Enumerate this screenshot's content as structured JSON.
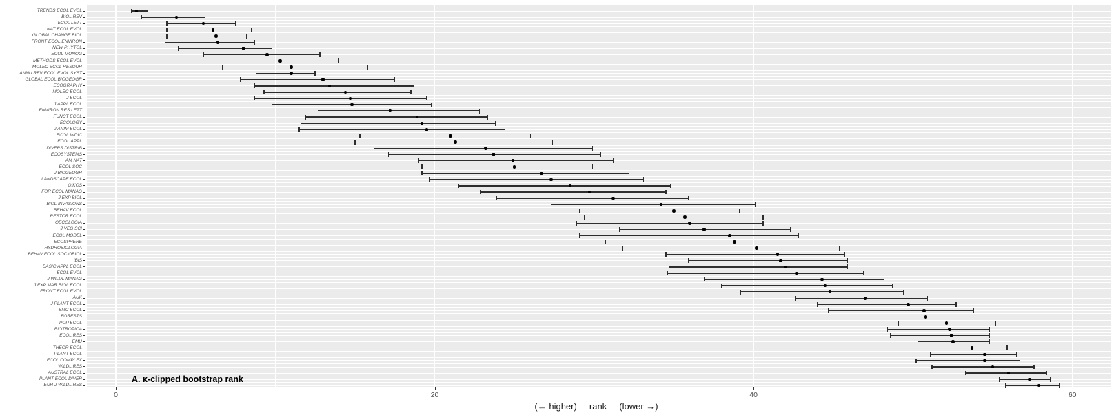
{
  "figure": {
    "panel_bg": "#EBEBEB",
    "grid_color": "#FFFFFF",
    "bar_color": "#2E2E2E",
    "point_color": "#000000",
    "axis_text_color": "#4D4D4D",
    "tick_color": "#333333",
    "annotation": "A. κ-clipped bootstrap rank",
    "xlabel_parts": [
      "(← higher)",
      "rank",
      "(lower →)"
    ]
  },
  "chart_data": {
    "type": "scatter",
    "subtype": "dot-with-horizontal-error-bars",
    "orientation": "horizontal",
    "title": "A. κ-clipped bootstrap rank",
    "xlabel": "(← higher)  rank  (lower →)",
    "ylabel": "",
    "xlim": [
      -1.8,
      62.4
    ],
    "x_ticks": [
      0,
      20,
      40,
      60
    ],
    "x_minor_ticks": [
      10,
      30,
      50
    ],
    "grid": true,
    "legend": false,
    "points": [
      {
        "label": "TRENDS ECOL EVOL",
        "lower": 1.0,
        "rank": 1.3,
        "upper": 2.0
      },
      {
        "label": "BIOL REV",
        "lower": 1.6,
        "rank": 3.8,
        "upper": 5.6
      },
      {
        "label": "ECOL LETT",
        "lower": 3.2,
        "rank": 5.5,
        "upper": 7.5
      },
      {
        "label": "NAT ECOL EVOL",
        "lower": 3.2,
        "rank": 6.1,
        "upper": 8.5
      },
      {
        "label": "GLOBAL CHANGE BIOL",
        "lower": 3.2,
        "rank": 6.3,
        "upper": 8.2
      },
      {
        "label": "FRONT ECOL ENVIRON",
        "lower": 3.1,
        "rank": 6.4,
        "upper": 8.7
      },
      {
        "label": "NEW PHYTOL",
        "lower": 3.9,
        "rank": 8.0,
        "upper": 9.8
      },
      {
        "label": "ECOL MONOG",
        "lower": 5.5,
        "rank": 9.5,
        "upper": 12.8
      },
      {
        "label": "METHODS ECOL EVOL",
        "lower": 5.6,
        "rank": 10.3,
        "upper": 14.0
      },
      {
        "label": "MOLEC ECOL RESOUR",
        "lower": 6.7,
        "rank": 11.0,
        "upper": 15.8
      },
      {
        "label": "ANNU REV ECOL EVOL SYST",
        "lower": 8.8,
        "rank": 11.0,
        "upper": 12.5
      },
      {
        "label": "GLOBAL ECOL BIOGEOGR",
        "lower": 7.8,
        "rank": 13.0,
        "upper": 17.5
      },
      {
        "label": "ECOGRAPHY",
        "lower": 8.7,
        "rank": 13.4,
        "upper": 18.7
      },
      {
        "label": "MOLEC ECOL",
        "lower": 9.3,
        "rank": 14.4,
        "upper": 18.5
      },
      {
        "label": "J ECOL",
        "lower": 8.7,
        "rank": 14.7,
        "upper": 19.5
      },
      {
        "label": "J APPL ECOL",
        "lower": 9.8,
        "rank": 14.8,
        "upper": 19.8
      },
      {
        "label": "ENVIRON RES LETT",
        "lower": 12.7,
        "rank": 17.2,
        "upper": 22.8
      },
      {
        "label": "FUNCT ECOL",
        "lower": 11.9,
        "rank": 18.9,
        "upper": 23.3
      },
      {
        "label": "ECOLOGY",
        "lower": 11.6,
        "rank": 19.2,
        "upper": 23.8
      },
      {
        "label": "J ANIM ECOL",
        "lower": 11.5,
        "rank": 19.5,
        "upper": 24.4
      },
      {
        "label": "ECOL INDIC",
        "lower": 15.3,
        "rank": 21.0,
        "upper": 26.0
      },
      {
        "label": "ECOL APPL",
        "lower": 15.0,
        "rank": 21.3,
        "upper": 27.4
      },
      {
        "label": "DIVERS DISTRIB",
        "lower": 16.2,
        "rank": 23.2,
        "upper": 29.9
      },
      {
        "label": "ECOSYSTEMS",
        "lower": 17.1,
        "rank": 23.7,
        "upper": 30.4
      },
      {
        "label": "AM NAT",
        "lower": 19.0,
        "rank": 24.9,
        "upper": 31.2
      },
      {
        "label": "ECOL SOC",
        "lower": 19.2,
        "rank": 25.0,
        "upper": 29.9
      },
      {
        "label": "J BIOGEOGR",
        "lower": 19.2,
        "rank": 26.7,
        "upper": 32.2
      },
      {
        "label": "LANDSCAPE ECOL",
        "lower": 19.7,
        "rank": 27.3,
        "upper": 33.1
      },
      {
        "label": "OIKOS",
        "lower": 21.5,
        "rank": 28.5,
        "upper": 34.8
      },
      {
        "label": "FOR ECOL MANAG",
        "lower": 22.9,
        "rank": 29.7,
        "upper": 34.5
      },
      {
        "label": "J EXP BIOL",
        "lower": 23.9,
        "rank": 31.2,
        "upper": 35.9
      },
      {
        "label": "BIOL INVASIONS",
        "lower": 27.3,
        "rank": 34.2,
        "upper": 40.1
      },
      {
        "label": "BEHAV ECOL",
        "lower": 29.1,
        "rank": 35.0,
        "upper": 39.1
      },
      {
        "label": "RESTOR ECOL",
        "lower": 29.4,
        "rank": 35.7,
        "upper": 40.6
      },
      {
        "label": "OECOLOGIA",
        "lower": 28.9,
        "rank": 36.0,
        "upper": 40.6
      },
      {
        "label": "J VEG SCI",
        "lower": 31.6,
        "rank": 36.9,
        "upper": 42.3
      },
      {
        "label": "ECOL MODEL",
        "lower": 29.1,
        "rank": 38.5,
        "upper": 42.8
      },
      {
        "label": "ECOSPHERE",
        "lower": 30.7,
        "rank": 38.8,
        "upper": 43.9
      },
      {
        "label": "HYDROBIOLOGIA",
        "lower": 31.8,
        "rank": 40.2,
        "upper": 45.4
      },
      {
        "label": "BEHAV ECOL SOCIOBIOL",
        "lower": 34.5,
        "rank": 41.5,
        "upper": 45.7
      },
      {
        "label": "IBIS",
        "lower": 35.9,
        "rank": 41.7,
        "upper": 45.9
      },
      {
        "label": "BASIC APPL ECOL",
        "lower": 34.7,
        "rank": 42.0,
        "upper": 45.9
      },
      {
        "label": "ECOL EVOL",
        "lower": 34.6,
        "rank": 42.7,
        "upper": 46.9
      },
      {
        "label": "J WILDL MANAG",
        "lower": 36.9,
        "rank": 44.3,
        "upper": 48.2
      },
      {
        "label": "J EXP MAR BIOL ECOL",
        "lower": 38.0,
        "rank": 44.5,
        "upper": 48.7
      },
      {
        "label": "FRONT ECOL EVOL",
        "lower": 39.2,
        "rank": 44.8,
        "upper": 49.4
      },
      {
        "label": "AUK",
        "lower": 42.6,
        "rank": 47.0,
        "upper": 50.9
      },
      {
        "label": "J PLANT ECOL",
        "lower": 44.0,
        "rank": 49.7,
        "upper": 52.7
      },
      {
        "label": "BMC ECOL",
        "lower": 44.7,
        "rank": 50.7,
        "upper": 53.8
      },
      {
        "label": "FORESTS",
        "lower": 46.8,
        "rank": 50.8,
        "upper": 53.5
      },
      {
        "label": "POP ECOL",
        "lower": 49.1,
        "rank": 52.1,
        "upper": 55.2
      },
      {
        "label": "BIOTROPICA",
        "lower": 48.4,
        "rank": 52.3,
        "upper": 54.8
      },
      {
        "label": "ECOL RES",
        "lower": 48.6,
        "rank": 52.4,
        "upper": 54.8
      },
      {
        "label": "EMU",
        "lower": 50.3,
        "rank": 52.5,
        "upper": 54.8
      },
      {
        "label": "THEOR ECOL",
        "lower": 50.3,
        "rank": 53.7,
        "upper": 55.9
      },
      {
        "label": "PLANT ECOL",
        "lower": 51.1,
        "rank": 54.5,
        "upper": 56.5
      },
      {
        "label": "ECOL COMPLEX",
        "lower": 50.2,
        "rank": 54.5,
        "upper": 56.7
      },
      {
        "label": "WILDL RES",
        "lower": 51.2,
        "rank": 55.0,
        "upper": 57.6
      },
      {
        "label": "AUSTRAL ECOL",
        "lower": 53.3,
        "rank": 56.0,
        "upper": 58.4
      },
      {
        "label": "PLANT ECOL DIVER",
        "lower": 55.4,
        "rank": 57.3,
        "upper": 58.6
      },
      {
        "label": "EUR J WILDL RES",
        "lower": 55.8,
        "rank": 57.9,
        "upper": 59.2
      }
    ]
  }
}
